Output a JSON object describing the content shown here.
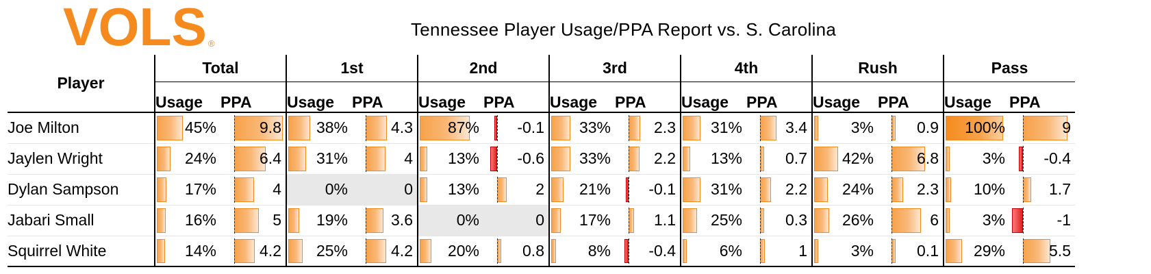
{
  "logo": {
    "text": "VOLS",
    "registered": "®",
    "color": "#f58b1f"
  },
  "title": "Tennessee Player Usage/PPA Report vs. S. Carolina",
  "player_header": "Player",
  "groups": [
    "Total",
    "1st",
    "2nd",
    "3rd",
    "4th",
    "Rush",
    "Pass"
  ],
  "sub_headers": {
    "usage": "Usage",
    "ppa": "PPA"
  },
  "colors": {
    "positive_bar": "#f58b1f",
    "negative_bar": "#e02020",
    "empty_cell": "#e8e8e8"
  },
  "rows": [
    {
      "player": "Joe Milton",
      "cells": [
        {
          "usage": "45%",
          "u": 0.45,
          "ppa": "9.8",
          "p": 9.8
        },
        {
          "usage": "38%",
          "u": 0.38,
          "ppa": "4.3",
          "p": 4.3
        },
        {
          "usage": "87%",
          "u": 0.87,
          "ppa": "-0.1",
          "p": -0.1
        },
        {
          "usage": "33%",
          "u": 0.33,
          "ppa": "2.3",
          "p": 2.3
        },
        {
          "usage": "31%",
          "u": 0.31,
          "ppa": "3.4",
          "p": 3.4
        },
        {
          "usage": "3%",
          "u": 0.03,
          "ppa": "0.9",
          "p": 0.9
        },
        {
          "usage": "100%",
          "u": 1.0,
          "ppa": "9",
          "p": 9
        }
      ]
    },
    {
      "player": "Jaylen Wright",
      "cells": [
        {
          "usage": "24%",
          "u": 0.24,
          "ppa": "6.4",
          "p": 6.4
        },
        {
          "usage": "31%",
          "u": 0.31,
          "ppa": "4",
          "p": 4
        },
        {
          "usage": "13%",
          "u": 0.13,
          "ppa": "-0.6",
          "p": -0.6
        },
        {
          "usage": "33%",
          "u": 0.33,
          "ppa": "2.2",
          "p": 2.2
        },
        {
          "usage": "13%",
          "u": 0.13,
          "ppa": "0.7",
          "p": 0.7
        },
        {
          "usage": "42%",
          "u": 0.42,
          "ppa": "6.8",
          "p": 6.8
        },
        {
          "usage": "3%",
          "u": 0.03,
          "ppa": "-0.4",
          "p": -0.4
        }
      ]
    },
    {
      "player": "Dylan Sampson",
      "cells": [
        {
          "usage": "17%",
          "u": 0.17,
          "ppa": "4",
          "p": 4
        },
        {
          "usage": "0%",
          "u": 0,
          "ppa": "0",
          "p": 0,
          "empty": true
        },
        {
          "usage": "13%",
          "u": 0.13,
          "ppa": "2",
          "p": 2
        },
        {
          "usage": "21%",
          "u": 0.21,
          "ppa": "-0.1",
          "p": -0.1
        },
        {
          "usage": "31%",
          "u": 0.31,
          "ppa": "2.2",
          "p": 2.2
        },
        {
          "usage": "24%",
          "u": 0.24,
          "ppa": "2.3",
          "p": 2.3
        },
        {
          "usage": "10%",
          "u": 0.1,
          "ppa": "1.7",
          "p": 1.7
        }
      ]
    },
    {
      "player": "Jabari Small",
      "cells": [
        {
          "usage": "16%",
          "u": 0.16,
          "ppa": "5",
          "p": 5
        },
        {
          "usage": "19%",
          "u": 0.19,
          "ppa": "3.6",
          "p": 3.6
        },
        {
          "usage": "0%",
          "u": 0,
          "ppa": "0",
          "p": 0,
          "empty": true
        },
        {
          "usage": "17%",
          "u": 0.17,
          "ppa": "1.1",
          "p": 1.1
        },
        {
          "usage": "25%",
          "u": 0.25,
          "ppa": "0.3",
          "p": 0.3
        },
        {
          "usage": "26%",
          "u": 0.26,
          "ppa": "6",
          "p": 6
        },
        {
          "usage": "3%",
          "u": 0.03,
          "ppa": "-1",
          "p": -1
        }
      ]
    },
    {
      "player": "Squirrel White",
      "cells": [
        {
          "usage": "14%",
          "u": 0.14,
          "ppa": "4.2",
          "p": 4.2
        },
        {
          "usage": "25%",
          "u": 0.25,
          "ppa": "4.2",
          "p": 4.2
        },
        {
          "usage": "20%",
          "u": 0.2,
          "ppa": "0.8",
          "p": 0.8
        },
        {
          "usage": "8%",
          "u": 0.08,
          "ppa": "-0.4",
          "p": -0.4
        },
        {
          "usage": "6%",
          "u": 0.06,
          "ppa": "1",
          "p": 1
        },
        {
          "usage": "3%",
          "u": 0.03,
          "ppa": "0.1",
          "p": 0.1
        },
        {
          "usage": "29%",
          "u": 0.29,
          "ppa": "5.5",
          "p": 5.5
        }
      ]
    }
  ]
}
